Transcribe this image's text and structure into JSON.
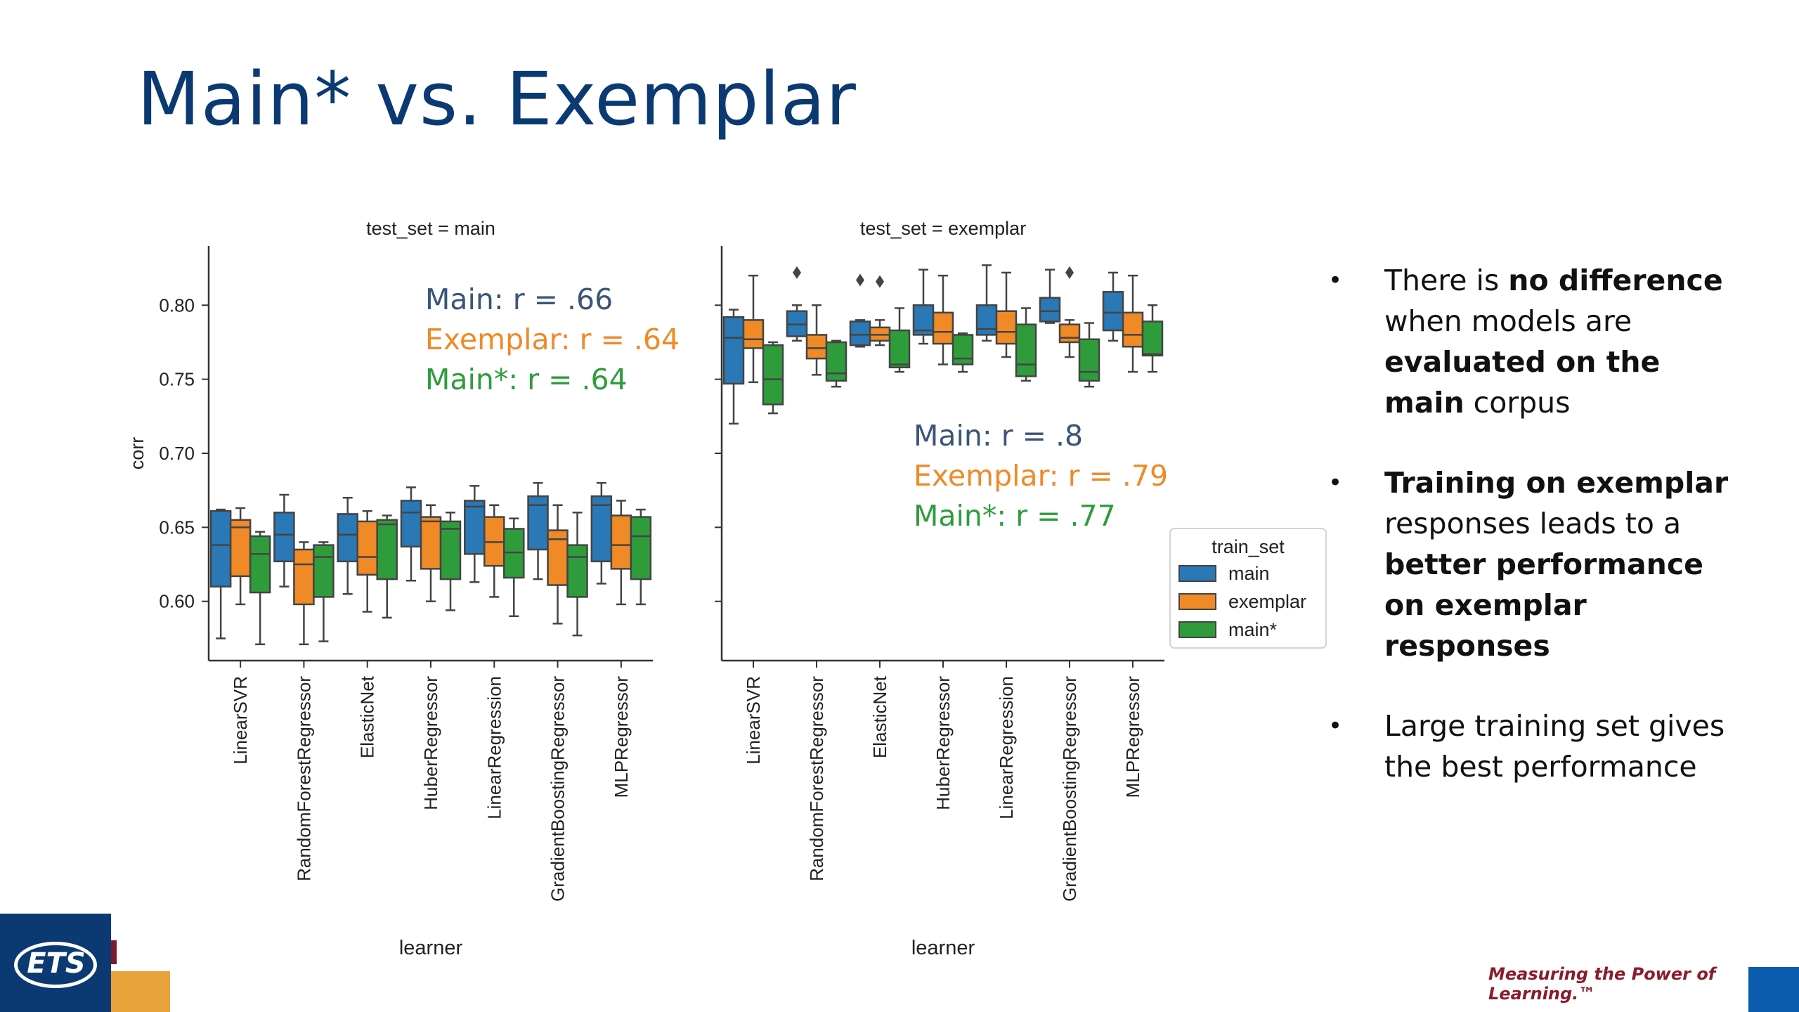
{
  "slide": {
    "title": "Main* vs. Exemplar",
    "bullets": [
      {
        "parts": [
          {
            "t": "There is ",
            "b": false
          },
          {
            "t": "no difference",
            "b": true
          },
          {
            "t": " when models are ",
            "b": false
          },
          {
            "t": "evaluated on the main",
            "b": true
          },
          {
            "t": " corpus",
            "b": false
          }
        ]
      },
      {
        "parts": [
          {
            "t": "Training on exemplar",
            "b": true
          },
          {
            "t": " responses leads to a ",
            "b": false
          },
          {
            "t": "better performance on exemplar responses",
            "b": true
          }
        ]
      },
      {
        "parts": [
          {
            "t": "Large training set gives the best performance",
            "b": false
          }
        ]
      }
    ],
    "logo_text": "ETS",
    "tagline": "Measuring the Power of Learning.™"
  },
  "colors": {
    "main": "#2a78b5",
    "exemplar": "#ef8a27",
    "main_star": "#2f9c3c",
    "title": "#0b3a73",
    "ann_main": "#3b5578"
  },
  "chart_data": {
    "type": "box",
    "ylabel": "corr",
    "xlabel": "learner",
    "ylim": [
      0.56,
      0.84
    ],
    "yticks": [
      0.6,
      0.65,
      0.7,
      0.75,
      0.8
    ],
    "yticklabels": [
      "0.60",
      "0.65",
      "0.70",
      "0.75",
      "0.80"
    ],
    "categories": [
      "LinearSVR",
      "RandomForestRegressor",
      "ElasticNet",
      "HuberRegressor",
      "LinearRegression",
      "GradientBoostingRegressor",
      "MLPRegressor"
    ],
    "legend": {
      "title": "train_set",
      "entries": [
        "main",
        "exemplar",
        "main*"
      ],
      "placement": "right"
    },
    "panels": [
      {
        "title": "test_set = main",
        "annotations": [
          {
            "text": "Main: r = .66",
            "color": "main"
          },
          {
            "text": "Exemplar: r = .64",
            "color": "exemplar"
          },
          {
            "text": "Main*: r = .64",
            "color": "main_star"
          }
        ],
        "series": [
          {
            "name": "main",
            "boxes": [
              [
                0.575,
                0.61,
                0.638,
                0.661,
                0.662
              ],
              [
                0.61,
                0.627,
                0.645,
                0.66,
                0.672
              ],
              [
                0.605,
                0.627,
                0.645,
                0.659,
                0.67
              ],
              [
                0.614,
                0.637,
                0.66,
                0.668,
                0.677
              ],
              [
                0.613,
                0.632,
                0.664,
                0.668,
                0.678
              ],
              [
                0.615,
                0.635,
                0.665,
                0.671,
                0.68
              ],
              [
                0.612,
                0.627,
                0.665,
                0.671,
                0.68
              ]
            ],
            "outliers": [
              [],
              [],
              [],
              [],
              [],
              [],
              []
            ]
          },
          {
            "name": "exemplar",
            "boxes": [
              [
                0.598,
                0.617,
                0.65,
                0.655,
                0.663
              ],
              [
                0.571,
                0.598,
                0.625,
                0.635,
                0.64
              ],
              [
                0.593,
                0.618,
                0.63,
                0.654,
                0.661
              ],
              [
                0.6,
                0.622,
                0.654,
                0.657,
                0.665
              ],
              [
                0.603,
                0.624,
                0.64,
                0.657,
                0.665
              ],
              [
                0.585,
                0.611,
                0.642,
                0.648,
                0.665
              ],
              [
                0.598,
                0.622,
                0.638,
                0.658,
                0.668
              ]
            ],
            "outliers": [
              [],
              [],
              [],
              [],
              [],
              [],
              []
            ]
          },
          {
            "name": "main*",
            "boxes": [
              [
                0.571,
                0.606,
                0.632,
                0.644,
                0.647
              ],
              [
                0.573,
                0.603,
                0.63,
                0.638,
                0.64
              ],
              [
                0.589,
                0.615,
                0.652,
                0.655,
                0.658
              ],
              [
                0.594,
                0.615,
                0.649,
                0.654,
                0.66
              ],
              [
                0.59,
                0.616,
                0.633,
                0.649,
                0.656
              ],
              [
                0.577,
                0.603,
                0.63,
                0.638,
                0.66
              ],
              [
                0.598,
                0.615,
                0.644,
                0.657,
                0.662
              ]
            ],
            "outliers": [
              [],
              [],
              [],
              [],
              [],
              [],
              []
            ]
          }
        ]
      },
      {
        "title": "test_set = exemplar",
        "annotations": [
          {
            "text": "Main: r = .8",
            "color": "main"
          },
          {
            "text": "Exemplar: r = .79",
            "color": "exemplar"
          },
          {
            "text": "Main*: r = .77",
            "color": "main_star"
          }
        ],
        "series": [
          {
            "name": "main",
            "boxes": [
              [
                0.72,
                0.747,
                0.778,
                0.792,
                0.797
              ],
              [
                0.776,
                0.779,
                0.787,
                0.796,
                0.8
              ],
              [
                0.772,
                0.773,
                0.78,
                0.789,
                0.79
              ],
              [
                0.774,
                0.78,
                0.783,
                0.8,
                0.824
              ],
              [
                0.776,
                0.78,
                0.784,
                0.8,
                0.827
              ],
              [
                0.788,
                0.789,
                0.796,
                0.805,
                0.824
              ],
              [
                0.776,
                0.783,
                0.795,
                0.809,
                0.822
              ]
            ],
            "outliers": [
              [],
              [
                0.822
              ],
              [
                0.817
              ],
              [],
              [],
              [],
              []
            ]
          },
          {
            "name": "exemplar",
            "boxes": [
              [
                0.748,
                0.771,
                0.777,
                0.79,
                0.82
              ],
              [
                0.753,
                0.764,
                0.771,
                0.78,
                0.8
              ],
              [
                0.773,
                0.776,
                0.78,
                0.785,
                0.79
              ],
              [
                0.76,
                0.774,
                0.782,
                0.795,
                0.82
              ],
              [
                0.765,
                0.774,
                0.782,
                0.796,
                0.822
              ],
              [
                0.765,
                0.775,
                0.778,
                0.787,
                0.79
              ],
              [
                0.755,
                0.772,
                0.78,
                0.795,
                0.82
              ]
            ],
            "outliers": [
              [],
              [],
              [
                0.816
              ],
              [],
              [],
              [
                0.822
              ],
              []
            ]
          },
          {
            "name": "main*",
            "boxes": [
              [
                0.727,
                0.733,
                0.75,
                0.773,
                0.775
              ],
              [
                0.745,
                0.749,
                0.754,
                0.775,
                0.776
              ],
              [
                0.755,
                0.758,
                0.76,
                0.783,
                0.798
              ],
              [
                0.755,
                0.76,
                0.764,
                0.78,
                0.781
              ],
              [
                0.749,
                0.752,
                0.76,
                0.787,
                0.798
              ],
              [
                0.745,
                0.749,
                0.755,
                0.777,
                0.788
              ],
              [
                0.755,
                0.766,
                0.767,
                0.789,
                0.8
              ]
            ],
            "outliers": [
              [],
              [],
              [],
              [],
              [],
              [],
              []
            ]
          }
        ]
      }
    ]
  }
}
